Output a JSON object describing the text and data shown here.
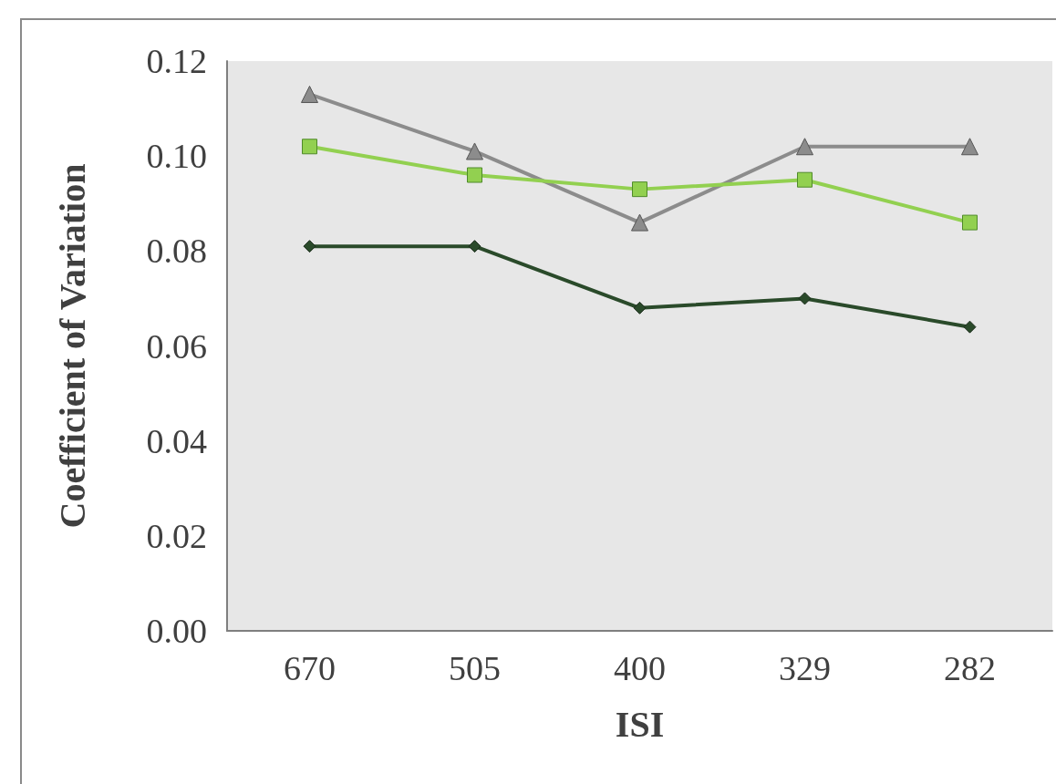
{
  "chart_data": {
    "type": "line",
    "xlabel": "ISI",
    "ylabel": "Coefficient of Variation",
    "categories": [
      "670",
      "505",
      "400",
      "329",
      "282"
    ],
    "series": [
      {
        "color": "#8c8c8c",
        "marker": "triangle",
        "values": [
          0.113,
          0.101,
          0.086,
          0.102,
          0.102
        ]
      },
      {
        "color": "#92d050",
        "marker": "square",
        "values": [
          0.102,
          0.096,
          0.093,
          0.095,
          0.086
        ]
      },
      {
        "color": "#2a4a2a",
        "marker": "diamond",
        "values": [
          0.081,
          0.081,
          0.068,
          0.07,
          0.064
        ]
      }
    ],
    "ylim": [
      0,
      0.12
    ],
    "yticks": [
      {
        "value": 0,
        "label": "0.00"
      },
      {
        "value": 0.02,
        "label": "0.02"
      },
      {
        "value": 0.04,
        "label": "0.04"
      },
      {
        "value": 0.06,
        "label": "0.06"
      },
      {
        "value": 0.08,
        "label": "0.08"
      },
      {
        "value": 0.1,
        "label": "0.10"
      },
      {
        "value": 0.12,
        "label": "0.12"
      }
    ],
    "grid": false
  }
}
